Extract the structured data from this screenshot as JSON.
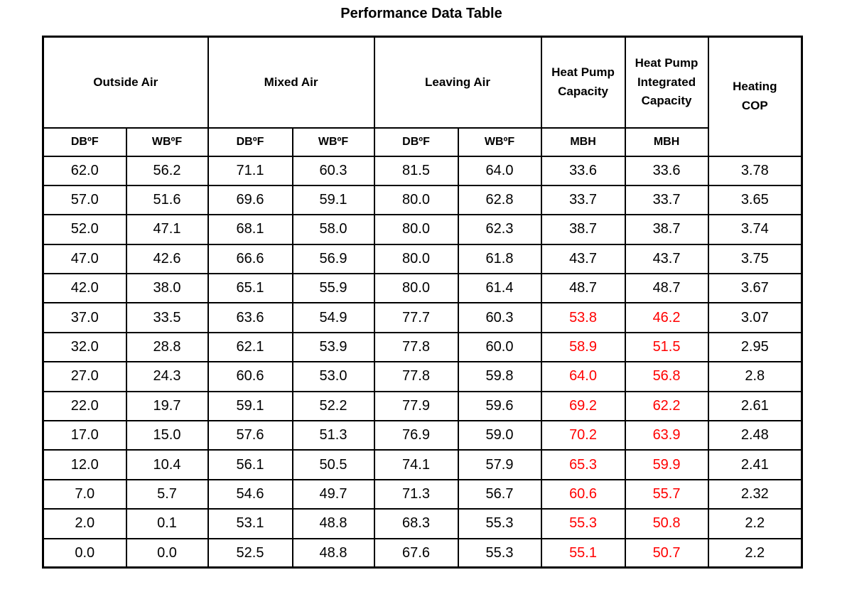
{
  "title": "Performance Data Table",
  "colors": {
    "text": "#000000",
    "border": "#000000",
    "highlight_text": "#FF0000"
  },
  "table": {
    "column_keys": [
      "oa-db",
      "oa-wb",
      "ma-db",
      "ma-wb",
      "la-db",
      "la-wb",
      "hp-capacity",
      "hp-integrated-capacity",
      "heating-cop"
    ],
    "groups": [
      {
        "label": "Outside Air",
        "colspan": 2
      },
      {
        "label": "Mixed Air",
        "colspan": 2
      },
      {
        "label": "Leaving Air",
        "colspan": 2
      },
      {
        "label": "Heat Pump\nCapacity",
        "colspan": 1
      },
      {
        "label": "Heat Pump\nIntegrated\nCapacity",
        "colspan": 1
      },
      {
        "label": "Heating\nCOP",
        "colspan": 1,
        "rowspan": 2
      }
    ],
    "subheaders": [
      "DBºF",
      "WBºF",
      "DBºF",
      "WBºF",
      "DBºF",
      "WBºF",
      "MBH",
      "MBH"
    ],
    "red_value_columns": [
      6,
      7
    ],
    "rows": [
      {
        "values": [
          "62.0",
          "56.2",
          "71.1",
          "60.3",
          "81.5",
          "64.0",
          "33.6",
          "33.6",
          "3.78"
        ],
        "capacity_red": false
      },
      {
        "values": [
          "57.0",
          "51.6",
          "69.6",
          "59.1",
          "80.0",
          "62.8",
          "33.7",
          "33.7",
          "3.65"
        ],
        "capacity_red": false
      },
      {
        "values": [
          "52.0",
          "47.1",
          "68.1",
          "58.0",
          "80.0",
          "62.3",
          "38.7",
          "38.7",
          "3.74"
        ],
        "capacity_red": false
      },
      {
        "values": [
          "47.0",
          "42.6",
          "66.6",
          "56.9",
          "80.0",
          "61.8",
          "43.7",
          "43.7",
          "3.75"
        ],
        "capacity_red": false
      },
      {
        "values": [
          "42.0",
          "38.0",
          "65.1",
          "55.9",
          "80.0",
          "61.4",
          "48.7",
          "48.7",
          "3.67"
        ],
        "capacity_red": false
      },
      {
        "values": [
          "37.0",
          "33.5",
          "63.6",
          "54.9",
          "77.7",
          "60.3",
          "53.8",
          "46.2",
          "3.07"
        ],
        "capacity_red": true
      },
      {
        "values": [
          "32.0",
          "28.8",
          "62.1",
          "53.9",
          "77.8",
          "60.0",
          "58.9",
          "51.5",
          "2.95"
        ],
        "capacity_red": true
      },
      {
        "values": [
          "27.0",
          "24.3",
          "60.6",
          "53.0",
          "77.8",
          "59.8",
          "64.0",
          "56.8",
          "2.8"
        ],
        "capacity_red": true
      },
      {
        "values": [
          "22.0",
          "19.7",
          "59.1",
          "52.2",
          "77.9",
          "59.6",
          "69.2",
          "62.2",
          "2.61"
        ],
        "capacity_red": true
      },
      {
        "values": [
          "17.0",
          "15.0",
          "57.6",
          "51.3",
          "76.9",
          "59.0",
          "70.2",
          "63.9",
          "2.48"
        ],
        "capacity_red": true
      },
      {
        "values": [
          "12.0",
          "10.4",
          "56.1",
          "50.5",
          "74.1",
          "57.9",
          "65.3",
          "59.9",
          "2.41"
        ],
        "capacity_red": true
      },
      {
        "values": [
          "7.0",
          "5.7",
          "54.6",
          "49.7",
          "71.3",
          "56.7",
          "60.6",
          "55.7",
          "2.32"
        ],
        "capacity_red": true
      },
      {
        "values": [
          "2.0",
          "0.1",
          "53.1",
          "48.8",
          "68.3",
          "55.3",
          "55.3",
          "50.8",
          "2.2"
        ],
        "capacity_red": true
      },
      {
        "values": [
          "0.0",
          "0.0",
          "52.5",
          "48.8",
          "67.6",
          "55.3",
          "55.1",
          "50.7",
          "2.2"
        ],
        "capacity_red": true
      }
    ]
  },
  "chart_data": {
    "type": "table",
    "title": "Performance Data Table",
    "columns": [
      "Outside Air DBºF",
      "Outside Air WBºF",
      "Mixed Air DBºF",
      "Mixed Air WBºF",
      "Leaving Air DBºF",
      "Leaving Air WBºF",
      "Heat Pump Capacity MBH",
      "Heat Pump Integrated Capacity MBH",
      "Heating COP"
    ],
    "rows": [
      [
        62.0,
        56.2,
        71.1,
        60.3,
        81.5,
        64.0,
        33.6,
        33.6,
        3.78
      ],
      [
        57.0,
        51.6,
        69.6,
        59.1,
        80.0,
        62.8,
        33.7,
        33.7,
        3.65
      ],
      [
        52.0,
        47.1,
        68.1,
        58.0,
        80.0,
        62.3,
        38.7,
        38.7,
        3.74
      ],
      [
        47.0,
        42.6,
        66.6,
        56.9,
        80.0,
        61.8,
        43.7,
        43.7,
        3.75
      ],
      [
        42.0,
        38.0,
        65.1,
        55.9,
        80.0,
        61.4,
        48.7,
        48.7,
        3.67
      ],
      [
        37.0,
        33.5,
        63.6,
        54.9,
        77.7,
        60.3,
        53.8,
        46.2,
        3.07
      ],
      [
        32.0,
        28.8,
        62.1,
        53.9,
        77.8,
        60.0,
        58.9,
        51.5,
        2.95
      ],
      [
        27.0,
        24.3,
        60.6,
        53.0,
        77.8,
        59.8,
        64.0,
        56.8,
        2.8
      ],
      [
        22.0,
        19.7,
        59.1,
        52.2,
        77.9,
        59.6,
        69.2,
        62.2,
        2.61
      ],
      [
        17.0,
        15.0,
        57.6,
        51.3,
        76.9,
        59.0,
        70.2,
        63.9,
        2.48
      ],
      [
        12.0,
        10.4,
        56.1,
        50.5,
        74.1,
        57.9,
        65.3,
        59.9,
        2.41
      ],
      [
        7.0,
        5.7,
        54.6,
        49.7,
        71.3,
        56.7,
        60.6,
        55.7,
        2.32
      ],
      [
        2.0,
        0.1,
        53.1,
        48.8,
        68.3,
        55.3,
        55.3,
        50.8,
        2.2
      ],
      [
        0.0,
        0.0,
        52.5,
        48.8,
        67.6,
        55.3,
        55.1,
        50.7,
        2.2
      ]
    ],
    "red_highlighted_columns": [
      "Heat Pump Capacity MBH",
      "Heat Pump Integrated Capacity MBH"
    ],
    "red_highlighted_row_range": [
      5,
      13
    ]
  }
}
